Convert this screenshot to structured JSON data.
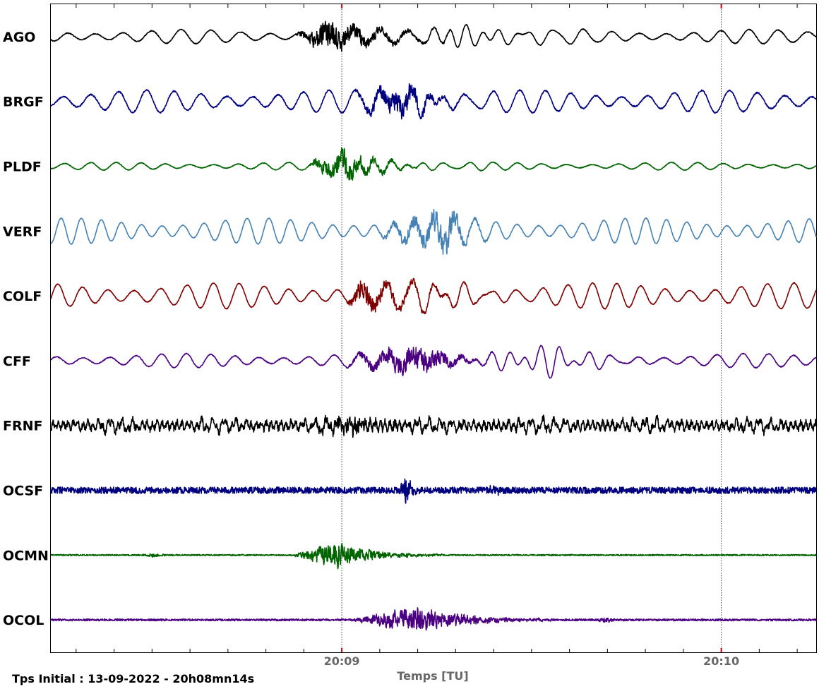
{
  "chart_data": {
    "type": "line",
    "xlabel": "Temps [TU]",
    "time_axis": {
      "start": "20:08:14",
      "end": "20:10:15",
      "labeled_ticks": [
        "20:09",
        "20:10"
      ],
      "minor_tick_interval_s": 6,
      "markers": [
        "20:09",
        "20:10"
      ]
    },
    "footnote": "Tps Initial : 13-09-2022 - 20h08mn14s",
    "grid": false,
    "series": [
      {
        "name": "AGO",
        "color": "#000000",
        "bg": {
          "kind": "swell",
          "amp": 0.22,
          "periodS": 4.5
        },
        "noise": 0.012,
        "bursts": [
          {
            "start": 38.5,
            "peak": 44,
            "end": 64,
            "amp": 0.55,
            "kind": "hf"
          },
          {
            "start": 58,
            "peak": 64,
            "end": 88,
            "amp": 0.35,
            "kind": "lf"
          }
        ]
      },
      {
        "name": "BRGF",
        "color": "#00007F",
        "bg": {
          "kind": "swell",
          "amp": 0.35,
          "periodS": 4.2
        },
        "noise": 0.02,
        "bursts": [
          {
            "start": 47,
            "peak": 56,
            "end": 66,
            "amp": 0.5,
            "kind": "hf"
          },
          {
            "start": 48,
            "peak": 58,
            "end": 72,
            "amp": 0.3,
            "kind": "lf"
          }
        ]
      },
      {
        "name": "PLDF",
        "color": "#006400",
        "bg": {
          "kind": "swell",
          "amp": 0.12,
          "periodS": 4.0
        },
        "noise": 0.01,
        "bursts": [
          {
            "start": 40.5,
            "peak": 46,
            "end": 58,
            "amp": 0.55,
            "kind": "hf"
          },
          {
            "start": 43,
            "peak": 50,
            "end": 70,
            "amp": 0.25,
            "kind": "lf"
          }
        ]
      },
      {
        "name": "VERF",
        "color": "#4682B4",
        "bg": {
          "kind": "swell",
          "amp": 0.4,
          "periodS": 3.3
        },
        "noise": 0.01,
        "bursts": [
          {
            "start": 51,
            "peak": 63,
            "end": 70,
            "amp": 0.55,
            "kind": "hf"
          }
        ]
      },
      {
        "name": "COLF",
        "color": "#7F0000",
        "bg": {
          "kind": "swell",
          "amp": 0.4,
          "periodS": 4.0
        },
        "noise": 0.012,
        "bursts": [
          {
            "start": 46.5,
            "peak": 49,
            "end": 70,
            "amp": 0.42,
            "kind": "hf"
          },
          {
            "start": 55,
            "peak": 62,
            "end": 78,
            "amp": 0.3,
            "kind": "lf"
          }
        ]
      },
      {
        "name": "CFF",
        "color": "#4B0082",
        "bg": {
          "kind": "swell",
          "amp": 0.22,
          "periodS": 4.0
        },
        "noise": 0.012,
        "bursts": [
          {
            "start": 46,
            "peak": 59,
            "end": 70,
            "amp": 0.55,
            "kind": "hf"
          },
          {
            "start": 60,
            "peak": 80,
            "end": 95,
            "amp": 0.35,
            "kind": "lf"
          }
        ]
      },
      {
        "name": "FRNF",
        "color": "#000000",
        "bg": {
          "kind": "noisy",
          "amp": 0.25,
          "periodS": 1.8
        },
        "noise": 0.1,
        "bursts": [
          {
            "start": 40,
            "peak": 48,
            "end": 60,
            "amp": 0.35,
            "kind": "hf"
          }
        ]
      },
      {
        "name": "OCSF",
        "color": "#00007F",
        "bg": {
          "kind": "flat",
          "amp": 0.0,
          "periodS": 2.0
        },
        "noise": 0.1,
        "bursts": [
          {
            "start": 55,
            "peak": 56,
            "end": 58.5,
            "amp": 0.7,
            "kind": "hf"
          },
          {
            "start": 69,
            "peak": 70,
            "end": 73,
            "amp": 0.2,
            "kind": "hf"
          }
        ]
      },
      {
        "name": "OCMN",
        "color": "#006400",
        "bg": {
          "kind": "flat",
          "amp": 0.0,
          "periodS": 2.0
        },
        "noise": 0.02,
        "bursts": [
          {
            "start": 38,
            "peak": 45,
            "end": 62,
            "amp": 0.5,
            "kind": "hf"
          },
          {
            "start": 14,
            "peak": 16.5,
            "end": 19,
            "amp": 0.08,
            "kind": "hf"
          }
        ]
      },
      {
        "name": "OCOL",
        "color": "#4B0082",
        "bg": {
          "kind": "flat",
          "amp": 0.0,
          "periodS": 2.0
        },
        "noise": 0.03,
        "bursts": [
          {
            "start": 47,
            "peak": 58,
            "end": 80,
            "amp": 0.5,
            "kind": "hf"
          },
          {
            "start": 86,
            "peak": 88,
            "end": 91,
            "amp": 0.1,
            "kind": "hf"
          }
        ]
      }
    ]
  }
}
